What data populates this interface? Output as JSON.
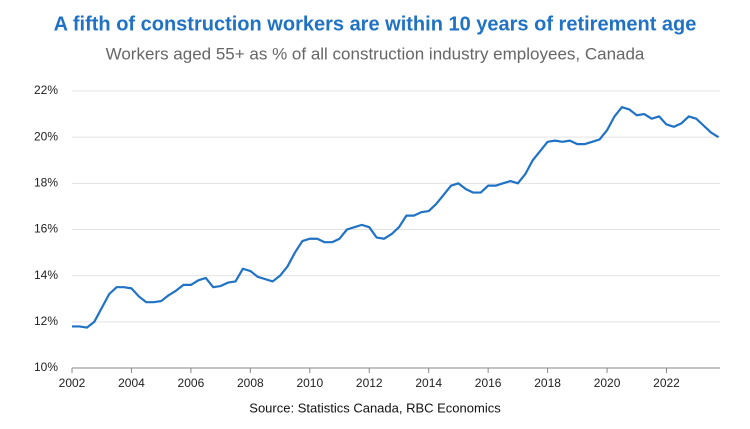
{
  "chart_data": {
    "type": "line",
    "title": "A fifth of construction workers are within 10 years of retirement age",
    "subtitle": "Workers aged 55+ as % of all construction industry employees, Canada",
    "source": "Source: Statistics Canada, RBC Economics",
    "color": "#1f72c4",
    "grid": true,
    "xlim": [
      2002,
      2023.8
    ],
    "xticks": [
      2002,
      2004,
      2006,
      2008,
      2010,
      2012,
      2014,
      2016,
      2018,
      2020,
      2022
    ],
    "ylim": [
      10,
      22
    ],
    "yticks": [
      {
        "value": 10,
        "label": "10%"
      },
      {
        "value": 12,
        "label": "12%"
      },
      {
        "value": 14,
        "label": "14%"
      },
      {
        "value": 16,
        "label": "16%"
      },
      {
        "value": 18,
        "label": "18%"
      },
      {
        "value": 20,
        "label": "20%"
      },
      {
        "value": 22,
        "label": "22%"
      }
    ],
    "x": [
      2002.0,
      2002.25,
      2002.5,
      2002.75,
      2003.0,
      2003.25,
      2003.5,
      2003.75,
      2004.0,
      2004.25,
      2004.5,
      2004.75,
      2005.0,
      2005.25,
      2005.5,
      2005.75,
      2006.0,
      2006.25,
      2006.5,
      2006.75,
      2007.0,
      2007.25,
      2007.5,
      2007.75,
      2008.0,
      2008.25,
      2008.5,
      2008.75,
      2009.0,
      2009.25,
      2009.5,
      2009.75,
      2010.0,
      2010.25,
      2010.5,
      2010.75,
      2011.0,
      2011.25,
      2011.5,
      2011.75,
      2012.0,
      2012.25,
      2012.5,
      2012.75,
      2013.0,
      2013.25,
      2013.5,
      2013.75,
      2014.0,
      2014.25,
      2014.5,
      2014.75,
      2015.0,
      2015.25,
      2015.5,
      2015.75,
      2016.0,
      2016.25,
      2016.5,
      2016.75,
      2017.0,
      2017.25,
      2017.5,
      2017.75,
      2018.0,
      2018.25,
      2018.5,
      2018.75,
      2019.0,
      2019.25,
      2019.5,
      2019.75,
      2020.0,
      2020.25,
      2020.5,
      2020.75,
      2021.0,
      2021.25,
      2021.5,
      2021.75,
      2022.0,
      2022.25,
      2022.5,
      2022.75,
      2023.0,
      2023.25,
      2023.5,
      2023.75
    ],
    "values": [
      11.8,
      11.8,
      11.75,
      12.0,
      12.6,
      13.2,
      13.5,
      13.5,
      13.45,
      13.1,
      12.85,
      12.85,
      12.9,
      13.15,
      13.35,
      13.6,
      13.6,
      13.8,
      13.9,
      13.5,
      13.55,
      13.7,
      13.75,
      14.3,
      14.2,
      13.95,
      13.85,
      13.75,
      14.0,
      14.4,
      15.0,
      15.5,
      15.6,
      15.6,
      15.45,
      15.45,
      15.6,
      16.0,
      16.1,
      16.2,
      16.1,
      15.65,
      15.6,
      15.8,
      16.1,
      16.6,
      16.6,
      16.75,
      16.8,
      17.1,
      17.5,
      17.9,
      18.0,
      17.75,
      17.6,
      17.6,
      17.9,
      17.9,
      18.0,
      18.1,
      18.0,
      18.4,
      19.0,
      19.4,
      19.8,
      19.85,
      19.8,
      19.85,
      19.7,
      19.7,
      19.8,
      19.9,
      20.3,
      20.9,
      21.3,
      21.2,
      20.95,
      21.0,
      20.8,
      20.9,
      20.55,
      20.45,
      20.6,
      20.9,
      20.8,
      20.5,
      20.2,
      20.0
    ]
  }
}
